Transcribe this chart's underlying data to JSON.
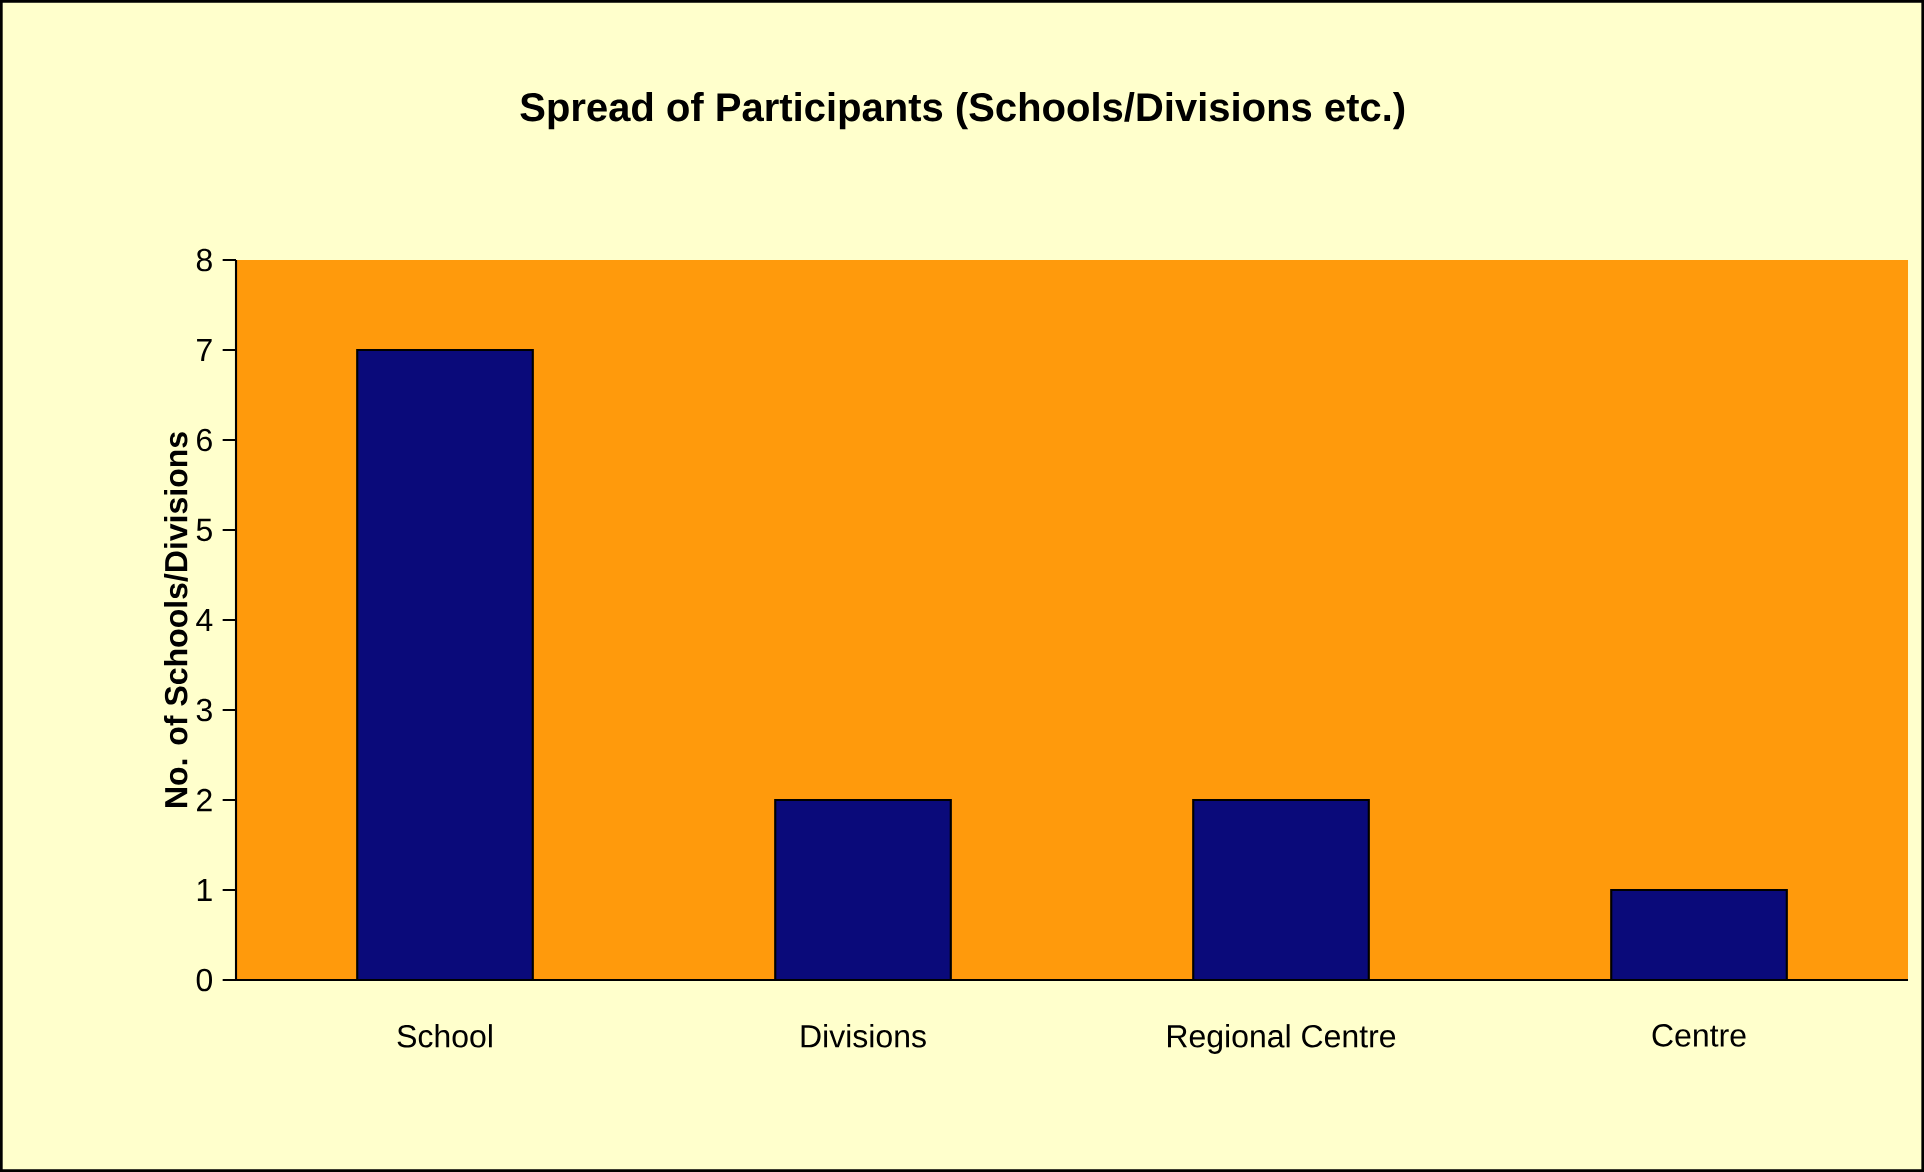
{
  "chart_data": {
    "type": "bar",
    "title": "Spread of Participants (Schools/Divisions etc.)",
    "ylabel": "No. of Schools/Divisions",
    "categories": [
      "School",
      "Divisions",
      "Regional Centre",
      "Centre"
    ],
    "values": [
      7,
      2,
      2,
      1
    ],
    "color": "#0a0a7a",
    "ylim": [
      0,
      8
    ],
    "yticks": [
      0,
      1,
      2,
      3,
      4,
      5,
      6,
      7,
      8
    ],
    "grid": false
  }
}
